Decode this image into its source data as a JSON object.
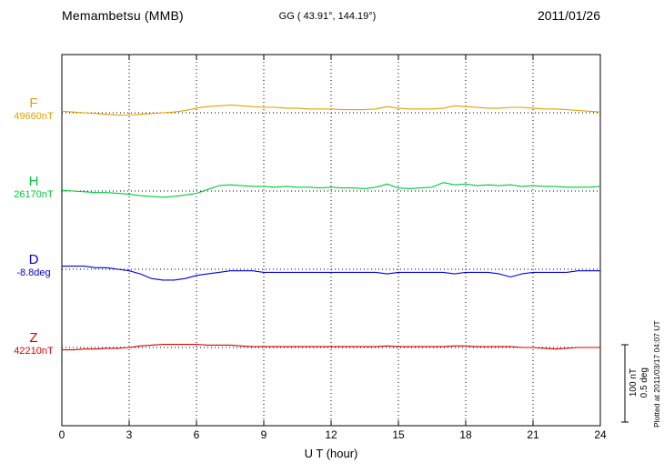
{
  "header": {
    "title": "Memambetsu (MMB)",
    "coords": "GG ( 43.91°, 144.19°)",
    "date": "2011/01/26"
  },
  "axis": {
    "xlabel": "U T (hour)"
  },
  "scale_bar": {
    "nt_label": "100 nT",
    "deg_label": "0.5 deg"
  },
  "footer_note": "Plotted at 2011/03/17 04:07 UT",
  "chart_data": {
    "type": "line",
    "title": "Memambetsu (MMB) magnetogram 2011/01/26",
    "xlabel": "U T (hour)",
    "x_range": [
      0,
      24
    ],
    "x_ticks": [
      0,
      3,
      6,
      9,
      12,
      15,
      18,
      21,
      24
    ],
    "x_start_hour": 0,
    "x_step_hours": 0.5,
    "grid": "dotted-vertical-at-ticks, dotted-baseline-per-channel",
    "scale": {
      "nT_per_div": 100,
      "deg_per_div": 0.5
    },
    "series": [
      {
        "name": "F",
        "unit": "nT",
        "baseline_value_label": "49660nT",
        "color": "#e2a000",
        "values": [
          2,
          1,
          0,
          -1,
          -2,
          -3,
          -3,
          -2,
          -1,
          0,
          1,
          3,
          6,
          8,
          9,
          10,
          9,
          8,
          7,
          7,
          6,
          6,
          5,
          5,
          5,
          4,
          4,
          4,
          5,
          8,
          6,
          5,
          5,
          5,
          6,
          9,
          8,
          7,
          6,
          6,
          7,
          7,
          6,
          5,
          5,
          4,
          3,
          2,
          1
        ]
      },
      {
        "name": "H",
        "unit": "nT",
        "baseline_value_label": "26170nT",
        "color": "#00c83c",
        "values": [
          1,
          0,
          -1,
          -2,
          -2,
          -3,
          -4,
          -6,
          -7,
          -8,
          -7,
          -5,
          -3,
          2,
          7,
          8,
          7,
          6,
          6,
          5,
          6,
          5,
          5,
          4,
          5,
          4,
          4,
          3,
          5,
          9,
          4,
          3,
          4,
          5,
          11,
          8,
          9,
          7,
          8,
          7,
          8,
          6,
          7,
          6,
          6,
          5,
          5,
          5,
          6
        ]
      },
      {
        "name": "D",
        "unit": "deg",
        "baseline_value_label": "-8.8deg",
        "color": "#0000dd",
        "values": [
          0.02,
          0.02,
          0.02,
          0.01,
          0.01,
          0,
          -0.01,
          -0.03,
          -0.06,
          -0.07,
          -0.07,
          -0.06,
          -0.04,
          -0.03,
          -0.02,
          -0.01,
          -0.01,
          -0.01,
          -0.02,
          -0.02,
          -0.02,
          -0.02,
          -0.02,
          -0.02,
          -0.02,
          -0.02,
          -0.02,
          -0.02,
          -0.02,
          -0.03,
          -0.02,
          -0.02,
          -0.02,
          -0.02,
          -0.02,
          -0.03,
          -0.02,
          -0.02,
          -0.02,
          -0.03,
          -0.05,
          -0.03,
          -0.02,
          -0.02,
          -0.02,
          -0.02,
          -0.01,
          -0.01,
          -0.01
        ]
      },
      {
        "name": "Z",
        "unit": "nT",
        "baseline_value_label": "42210nT",
        "color": "#dd0000",
        "values": [
          -3,
          -3,
          -2,
          -2,
          -1,
          -1,
          0,
          2,
          3,
          4,
          4,
          4,
          4,
          3,
          3,
          3,
          2,
          1,
          1,
          1,
          1,
          1,
          1,
          1,
          1,
          1,
          1,
          1,
          1,
          2,
          1,
          1,
          1,
          1,
          1,
          2,
          2,
          1,
          1,
          1,
          1,
          0,
          0,
          -1,
          -2,
          -1,
          0,
          0,
          0
        ]
      }
    ]
  }
}
